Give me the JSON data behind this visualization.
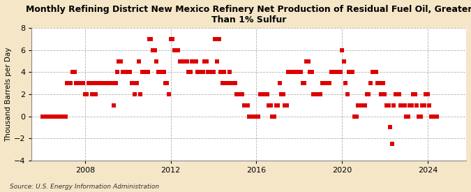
{
  "title": "Monthly Refining District New Mexico Refinery Net Production of Residual Fuel Oil, Greater\nThan 1% Sulfur",
  "ylabel": "Thousand Barrels per Day",
  "source": "Source: U.S. Energy Information Administration",
  "fig_background_color": "#f5e6c8",
  "plot_background_color": "#ffffff",
  "marker_color": "#dd0000",
  "ylim": [
    -4,
    8
  ],
  "yticks": [
    -4,
    -2,
    0,
    2,
    4,
    6,
    8
  ],
  "xlim_start": 2005.5,
  "xlim_end": 2025.8,
  "xticks": [
    2008,
    2012,
    2016,
    2020,
    2024
  ],
  "data": [
    [
      2006.0,
      0
    ],
    [
      2006.08,
      0
    ],
    [
      2006.17,
      0
    ],
    [
      2006.25,
      0
    ],
    [
      2006.33,
      0
    ],
    [
      2006.42,
      0
    ],
    [
      2006.5,
      0
    ],
    [
      2006.58,
      0
    ],
    [
      2006.67,
      0
    ],
    [
      2006.75,
      0
    ],
    [
      2006.83,
      0
    ],
    [
      2006.92,
      0
    ],
    [
      2007.0,
      0
    ],
    [
      2007.08,
      0
    ],
    [
      2007.17,
      3
    ],
    [
      2007.25,
      3
    ],
    [
      2007.33,
      3
    ],
    [
      2007.42,
      4
    ],
    [
      2007.5,
      4
    ],
    [
      2007.58,
      3
    ],
    [
      2007.67,
      3
    ],
    [
      2007.75,
      3
    ],
    [
      2007.83,
      3
    ],
    [
      2007.92,
      3
    ],
    [
      2008.0,
      2
    ],
    [
      2008.08,
      2
    ],
    [
      2008.17,
      3
    ],
    [
      2008.25,
      3
    ],
    [
      2008.33,
      2
    ],
    [
      2008.42,
      3
    ],
    [
      2008.5,
      2
    ],
    [
      2008.58,
      3
    ],
    [
      2008.67,
      3
    ],
    [
      2008.75,
      3
    ],
    [
      2008.83,
      3
    ],
    [
      2008.92,
      3
    ],
    [
      2009.0,
      3
    ],
    [
      2009.08,
      3
    ],
    [
      2009.17,
      3
    ],
    [
      2009.25,
      3
    ],
    [
      2009.33,
      1
    ],
    [
      2009.42,
      3
    ],
    [
      2009.5,
      4
    ],
    [
      2009.58,
      5
    ],
    [
      2009.67,
      5
    ],
    [
      2009.75,
      4
    ],
    [
      2009.83,
      4
    ],
    [
      2009.92,
      4
    ],
    [
      2010.0,
      4
    ],
    [
      2010.08,
      4
    ],
    [
      2010.17,
      3
    ],
    [
      2010.25,
      3
    ],
    [
      2010.33,
      2
    ],
    [
      2010.42,
      3
    ],
    [
      2010.5,
      5
    ],
    [
      2010.58,
      2
    ],
    [
      2010.67,
      4
    ],
    [
      2010.75,
      4
    ],
    [
      2010.83,
      4
    ],
    [
      2010.92,
      4
    ],
    [
      2011.0,
      7
    ],
    [
      2011.08,
      7
    ],
    [
      2011.17,
      6
    ],
    [
      2011.25,
      6
    ],
    [
      2011.33,
      5
    ],
    [
      2011.42,
      4
    ],
    [
      2011.5,
      4
    ],
    [
      2011.58,
      4
    ],
    [
      2011.67,
      4
    ],
    [
      2011.75,
      3
    ],
    [
      2011.83,
      3
    ],
    [
      2011.92,
      2
    ],
    [
      2012.0,
      7
    ],
    [
      2012.08,
      7
    ],
    [
      2012.17,
      6
    ],
    [
      2012.25,
      6
    ],
    [
      2012.33,
      6
    ],
    [
      2012.42,
      5
    ],
    [
      2012.5,
      5
    ],
    [
      2012.58,
      5
    ],
    [
      2012.67,
      5
    ],
    [
      2012.75,
      5
    ],
    [
      2012.83,
      4
    ],
    [
      2012.92,
      4
    ],
    [
      2013.0,
      5
    ],
    [
      2013.08,
      5
    ],
    [
      2013.17,
      5
    ],
    [
      2013.25,
      4
    ],
    [
      2013.33,
      4
    ],
    [
      2013.42,
      4
    ],
    [
      2013.5,
      4
    ],
    [
      2013.58,
      5
    ],
    [
      2013.67,
      5
    ],
    [
      2013.75,
      4
    ],
    [
      2013.83,
      4
    ],
    [
      2013.92,
      4
    ],
    [
      2014.0,
      4
    ],
    [
      2014.08,
      7
    ],
    [
      2014.17,
      5
    ],
    [
      2014.25,
      7
    ],
    [
      2014.33,
      4
    ],
    [
      2014.42,
      3
    ],
    [
      2014.5,
      4
    ],
    [
      2014.58,
      3
    ],
    [
      2014.67,
      3
    ],
    [
      2014.75,
      4
    ],
    [
      2014.83,
      3
    ],
    [
      2014.92,
      3
    ],
    [
      2015.0,
      3
    ],
    [
      2015.08,
      2
    ],
    [
      2015.17,
      2
    ],
    [
      2015.25,
      2
    ],
    [
      2015.33,
      2
    ],
    [
      2015.42,
      1
    ],
    [
      2015.5,
      1
    ],
    [
      2015.58,
      1
    ],
    [
      2015.67,
      0
    ],
    [
      2015.75,
      0
    ],
    [
      2015.83,
      0
    ],
    [
      2015.92,
      0
    ],
    [
      2016.0,
      0
    ],
    [
      2016.08,
      0
    ],
    [
      2016.17,
      2
    ],
    [
      2016.25,
      2
    ],
    [
      2016.33,
      2
    ],
    [
      2016.42,
      2
    ],
    [
      2016.5,
      2
    ],
    [
      2016.58,
      1
    ],
    [
      2016.67,
      1
    ],
    [
      2016.75,
      0
    ],
    [
      2016.83,
      0
    ],
    [
      2016.92,
      1
    ],
    [
      2017.0,
      1
    ],
    [
      2017.08,
      3
    ],
    [
      2017.17,
      2
    ],
    [
      2017.25,
      2
    ],
    [
      2017.33,
      1
    ],
    [
      2017.42,
      1
    ],
    [
      2017.5,
      4
    ],
    [
      2017.58,
      4
    ],
    [
      2017.67,
      4
    ],
    [
      2017.75,
      4
    ],
    [
      2017.83,
      4
    ],
    [
      2017.92,
      4
    ],
    [
      2018.0,
      4
    ],
    [
      2018.08,
      4
    ],
    [
      2018.17,
      3
    ],
    [
      2018.25,
      3
    ],
    [
      2018.33,
      5
    ],
    [
      2018.42,
      5
    ],
    [
      2018.5,
      4
    ],
    [
      2018.58,
      4
    ],
    [
      2018.67,
      2
    ],
    [
      2018.75,
      2
    ],
    [
      2018.83,
      2
    ],
    [
      2018.92,
      2
    ],
    [
      2019.0,
      2
    ],
    [
      2019.08,
      3
    ],
    [
      2019.17,
      3
    ],
    [
      2019.25,
      3
    ],
    [
      2019.33,
      3
    ],
    [
      2019.42,
      3
    ],
    [
      2019.5,
      4
    ],
    [
      2019.58,
      4
    ],
    [
      2019.67,
      4
    ],
    [
      2019.75,
      4
    ],
    [
      2019.83,
      4
    ],
    [
      2019.92,
      4
    ],
    [
      2020.0,
      6
    ],
    [
      2020.08,
      5
    ],
    [
      2020.17,
      3
    ],
    [
      2020.25,
      2
    ],
    [
      2020.33,
      4
    ],
    [
      2020.42,
      4
    ],
    [
      2020.5,
      4
    ],
    [
      2020.58,
      0
    ],
    [
      2020.67,
      0
    ],
    [
      2020.75,
      1
    ],
    [
      2020.83,
      1
    ],
    [
      2020.92,
      1
    ],
    [
      2021.0,
      1
    ],
    [
      2021.08,
      1
    ],
    [
      2021.17,
      2
    ],
    [
      2021.25,
      2
    ],
    [
      2021.33,
      3
    ],
    [
      2021.42,
      4
    ],
    [
      2021.5,
      4
    ],
    [
      2021.58,
      4
    ],
    [
      2021.67,
      3
    ],
    [
      2021.75,
      3
    ],
    [
      2021.83,
      2
    ],
    [
      2021.92,
      3
    ],
    [
      2022.0,
      2
    ],
    [
      2022.08,
      1
    ],
    [
      2022.17,
      1
    ],
    [
      2022.25,
      -1
    ],
    [
      2022.33,
      -2.5
    ],
    [
      2022.42,
      1
    ],
    [
      2022.5,
      2
    ],
    [
      2022.58,
      2
    ],
    [
      2022.67,
      2
    ],
    [
      2022.75,
      1
    ],
    [
      2022.83,
      1
    ],
    [
      2022.92,
      1
    ],
    [
      2023.0,
      0
    ],
    [
      2023.08,
      0
    ],
    [
      2023.17,
      1
    ],
    [
      2023.25,
      1
    ],
    [
      2023.33,
      2
    ],
    [
      2023.42,
      2
    ],
    [
      2023.5,
      1
    ],
    [
      2023.58,
      0
    ],
    [
      2023.67,
      0
    ],
    [
      2023.75,
      1
    ],
    [
      2023.83,
      1
    ],
    [
      2023.92,
      2
    ],
    [
      2024.0,
      2
    ],
    [
      2024.08,
      1
    ],
    [
      2024.17,
      0
    ],
    [
      2024.25,
      0
    ],
    [
      2024.33,
      0
    ],
    [
      2024.42,
      0
    ]
  ]
}
